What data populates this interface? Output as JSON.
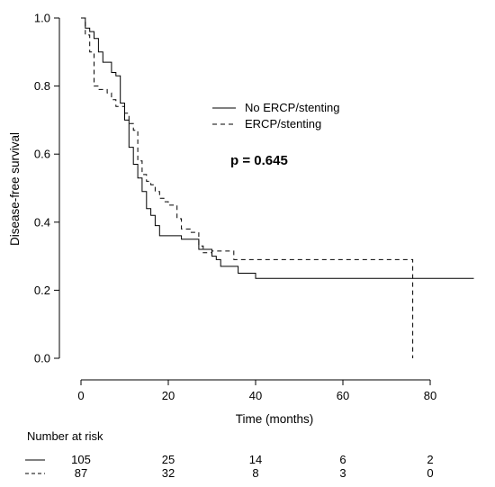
{
  "chart_data": {
    "type": "line",
    "subtype": "kaplan-meier survival curve",
    "xlabel": "Time (months)",
    "ylabel": "Disease-free survival",
    "xlim": [
      -5,
      92
    ],
    "ylim": [
      0,
      1.0
    ],
    "x_ticks": [
      0,
      20,
      40,
      60,
      80
    ],
    "y_ticks": [
      0.0,
      0.2,
      0.4,
      0.6,
      0.8,
      1.0
    ],
    "y_tick_labels": [
      "0.0",
      "0.2",
      "0.4",
      "0.6",
      "0.8",
      "1.0"
    ],
    "grid": false,
    "legend_position": "top-right",
    "annotation": "p = 0.645",
    "series": [
      {
        "name": "No ERCP/stenting",
        "line_style": "solid",
        "x": [
          0,
          1,
          2,
          3,
          4,
          5,
          6,
          7,
          8,
          9,
          10,
          11,
          12,
          13,
          14,
          15,
          16,
          17,
          18,
          20,
          23,
          25,
          27,
          29,
          30,
          31,
          32,
          34,
          36,
          40,
          50,
          60,
          70,
          80,
          90
        ],
        "y": [
          1.0,
          0.97,
          0.96,
          0.94,
          0.9,
          0.87,
          0.87,
          0.84,
          0.83,
          0.75,
          0.7,
          0.62,
          0.57,
          0.53,
          0.49,
          0.44,
          0.42,
          0.39,
          0.36,
          0.36,
          0.35,
          0.35,
          0.32,
          0.32,
          0.3,
          0.29,
          0.27,
          0.27,
          0.25,
          0.235,
          0.235,
          0.235,
          0.235,
          0.235,
          0.235
        ]
      },
      {
        "name": "ERCP/stenting",
        "line_style": "dashed",
        "x": [
          0,
          1,
          2,
          3,
          4,
          6,
          7,
          8,
          10,
          11,
          12,
          13,
          14,
          15,
          16,
          17,
          18,
          19,
          20,
          22,
          23,
          25,
          27,
          28,
          30,
          35,
          40,
          50,
          60,
          70,
          75.5,
          76
        ],
        "y": [
          1.0,
          0.95,
          0.9,
          0.8,
          0.79,
          0.78,
          0.76,
          0.74,
          0.72,
          0.69,
          0.67,
          0.58,
          0.54,
          0.52,
          0.51,
          0.49,
          0.47,
          0.46,
          0.45,
          0.41,
          0.38,
          0.37,
          0.33,
          0.31,
          0.315,
          0.29,
          0.29,
          0.29,
          0.29,
          0.29,
          0.29,
          0.0
        ]
      }
    ],
    "risk_table": {
      "title": "Number at risk",
      "times": [
        0,
        20,
        40,
        60,
        80
      ],
      "rows": [
        {
          "line_style": "solid",
          "counts": [
            "105",
            "25",
            "14",
            "6",
            "2"
          ]
        },
        {
          "line_style": "dashed",
          "counts": [
            "87",
            "32",
            "8",
            "3",
            "0"
          ]
        }
      ]
    }
  }
}
